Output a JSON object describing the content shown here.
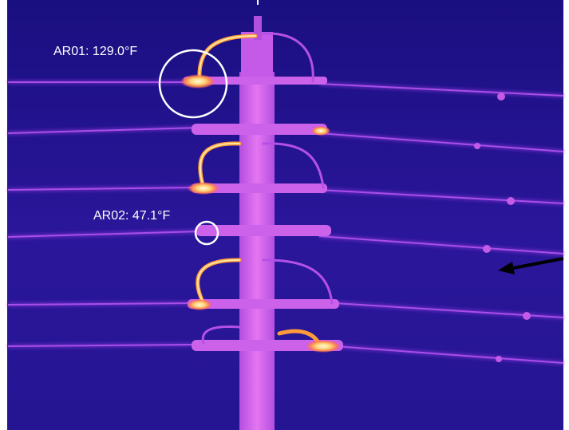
{
  "image": {
    "description_type": "thermal-infrared-photo",
    "palette": {
      "background": "#23138a",
      "line": "#9a3fe0",
      "pole": "#d25ce8",
      "warm": "#f06ad8",
      "hot": "#ff9a3c",
      "hottest": "#fff3c0",
      "annotation": "#ffffff",
      "arrow": "#000000"
    }
  },
  "measurements": [
    {
      "id": "AR01",
      "label": "AR01: 129.0°F"
    },
    {
      "id": "AR02",
      "label": "AR02: 47.1°F"
    }
  ]
}
